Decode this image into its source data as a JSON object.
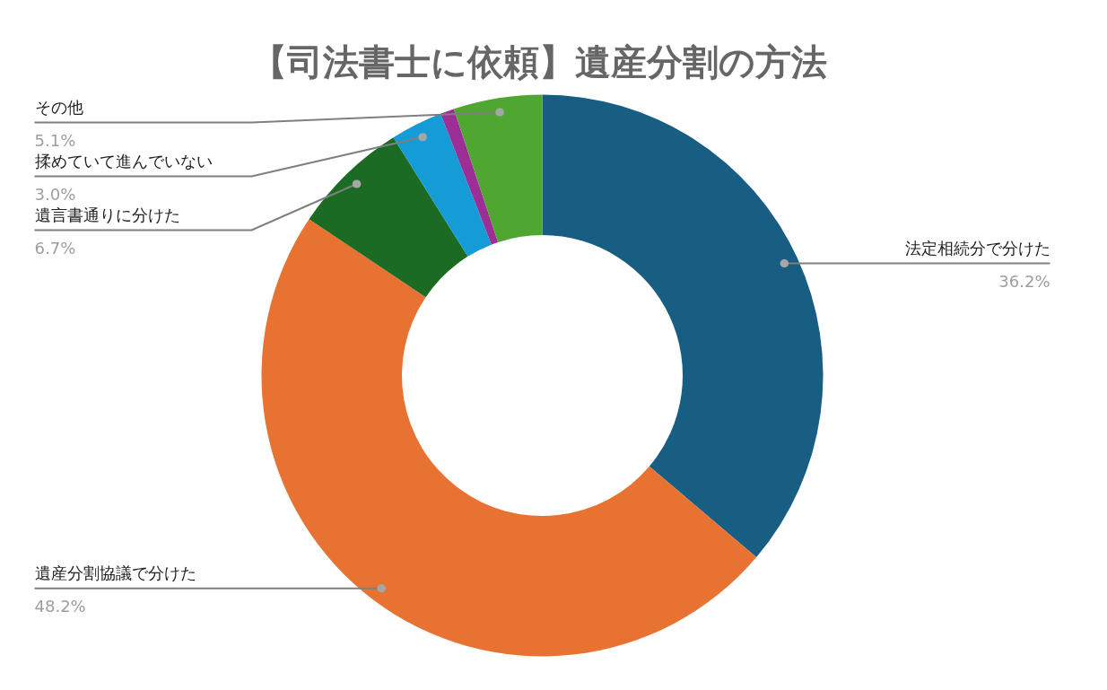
{
  "chart_data": {
    "type": "donut",
    "title": "【司法書士に依頼】遺産分割の方法",
    "categories": [
      "法定相続分で分けた",
      "遺産分割協議で分けた",
      "遺言書通りに分けた",
      "揉めていて進んでいない",
      null,
      "その他"
    ],
    "values": [
      36.2,
      48.2,
      6.7,
      3.0,
      0.8,
      5.1
    ],
    "colors": [
      "#175e82",
      "#e87232",
      "#1c6b23",
      "#159bd6",
      "#9c2f95",
      "#4fa731"
    ],
    "value_labels": [
      "36.2%",
      "48.2%",
      "6.7%",
      "3.0%",
      null,
      "5.1%"
    ]
  }
}
